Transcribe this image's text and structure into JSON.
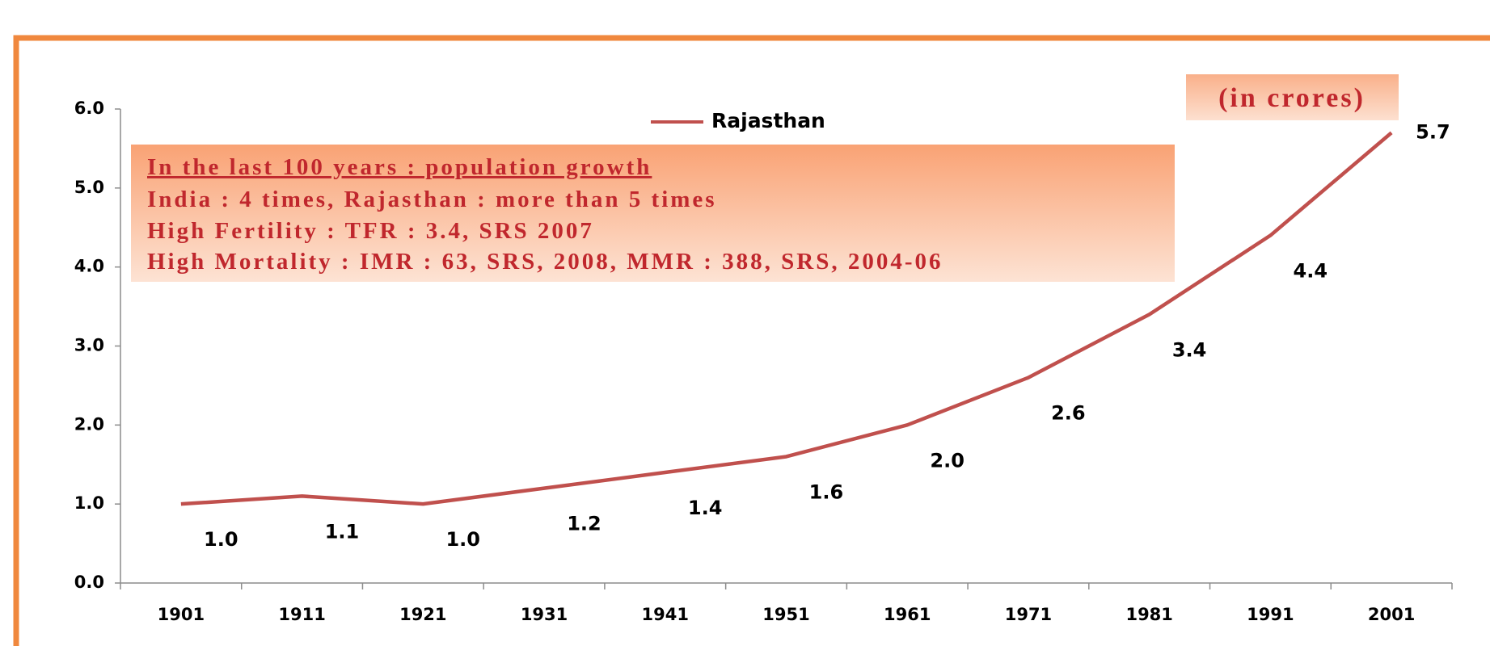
{
  "chart_data": {
    "type": "line",
    "categories": [
      "1901",
      "1911",
      "1921",
      "1931",
      "1941",
      "1951",
      "1961",
      "1971",
      "1981",
      "1991",
      "2001"
    ],
    "series": [
      {
        "name": "Rajasthan",
        "color": "#c0504d",
        "values": [
          1.0,
          1.1,
          1.0,
          1.2,
          1.4,
          1.6,
          2.0,
          2.6,
          3.4,
          4.4,
          5.7
        ],
        "value_labels": [
          "1.0",
          "1.1",
          "1.0",
          "1.2",
          "1.4",
          "1.6",
          "2.0",
          "2.6",
          "3.4",
          "4.4",
          "5.7"
        ]
      }
    ],
    "ylim": [
      0,
      6
    ],
    "yticks": [
      {
        "value": 0,
        "label": "0.0"
      },
      {
        "value": 1,
        "label": "1.0"
      },
      {
        "value": 2,
        "label": "2.0"
      },
      {
        "value": 3,
        "label": "3.0"
      },
      {
        "value": 4,
        "label": "4.0"
      },
      {
        "value": 5,
        "label": "5.0"
      },
      {
        "value": 6,
        "label": "6.0"
      }
    ],
    "unit_note": "(in crores)",
    "annotations": [
      "In the last 100 years : population growth",
      "India : 4 times, Rajasthan : more than 5 times",
      "High Fertility : TFR : 3.4, SRS 2007",
      "High Mortality : IMR : 63, SRS, 2008, MMR : 388, SRS, 2004-06"
    ],
    "grid": false
  }
}
